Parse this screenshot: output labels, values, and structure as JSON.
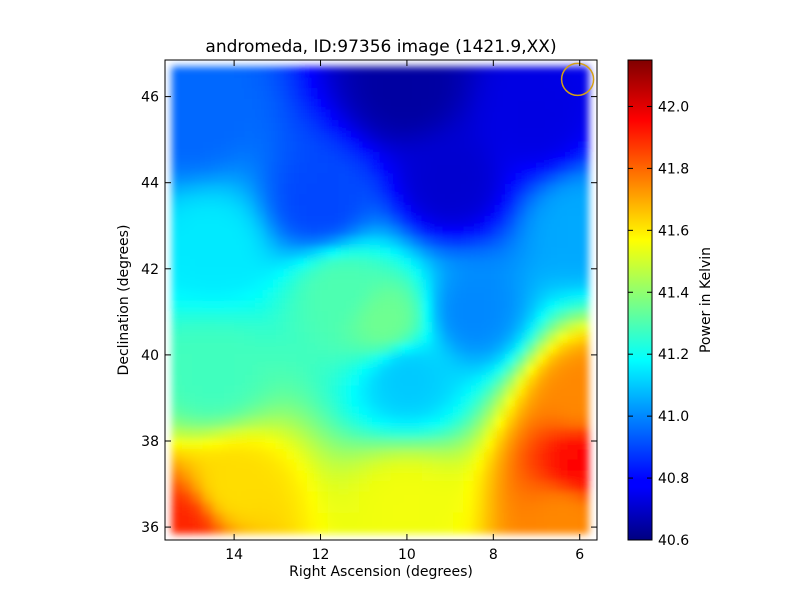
{
  "chart_data": {
    "type": "heatmap",
    "title": "andromeda, ID:97356 image (1421.9,XX)",
    "xlabel": "Right Ascension (degrees)",
    "ylabel": "Declination (degrees)",
    "xlim": [
      15.6,
      5.6
    ],
    "ylim": [
      35.7,
      46.85
    ],
    "x_ticks": [
      14,
      12,
      10,
      8,
      6
    ],
    "y_ticks": [
      36,
      38,
      40,
      42,
      44,
      46
    ],
    "colorbar": {
      "label": "Power in Kelvin",
      "range": [
        40.6,
        42.15
      ],
      "ticks": [
        "40.6",
        "40.8",
        "41.0",
        "41.2",
        "41.4",
        "41.6",
        "41.8",
        "42.0"
      ],
      "tick_values": [
        40.6,
        40.8,
        41.0,
        41.2,
        41.4,
        41.6,
        41.8,
        42.0
      ],
      "colormap": "jet"
    },
    "annotation": {
      "shape": "circle",
      "ra": 6.05,
      "dec": 46.4,
      "color": "#d4a017"
    },
    "regions": [
      {
        "ra": 15.3,
        "dec": 36.0,
        "power": 41.9
      },
      {
        "ra": 14.0,
        "dec": 37.0,
        "power": 41.62
      },
      {
        "ra": 10.0,
        "dec": 36.5,
        "power": 41.55
      },
      {
        "ra": 6.3,
        "dec": 36.2,
        "power": 41.75
      },
      {
        "ra": 5.9,
        "dec": 37.5,
        "power": 41.95
      },
      {
        "ra": 5.9,
        "dec": 39.0,
        "power": 41.75
      },
      {
        "ra": 14.5,
        "dec": 39.5,
        "power": 41.28
      },
      {
        "ra": 10.0,
        "dec": 39.5,
        "power": 41.1
      },
      {
        "ra": 11.5,
        "dec": 41.5,
        "power": 41.3
      },
      {
        "ra": 10.5,
        "dec": 40.8,
        "power": 41.35
      },
      {
        "ra": 14.5,
        "dec": 42.5,
        "power": 41.15
      },
      {
        "ra": 8.5,
        "dec": 41.0,
        "power": 41.0
      },
      {
        "ra": 12.0,
        "dec": 43.5,
        "power": 40.9
      },
      {
        "ra": 9.0,
        "dec": 44.0,
        "power": 40.72
      },
      {
        "ra": 10.0,
        "dec": 46.2,
        "power": 40.65
      },
      {
        "ra": 7.0,
        "dec": 45.5,
        "power": 40.75
      },
      {
        "ra": 15.0,
        "dec": 45.5,
        "power": 40.95
      },
      {
        "ra": 6.0,
        "dec": 43.0,
        "power": 41.05
      }
    ]
  }
}
